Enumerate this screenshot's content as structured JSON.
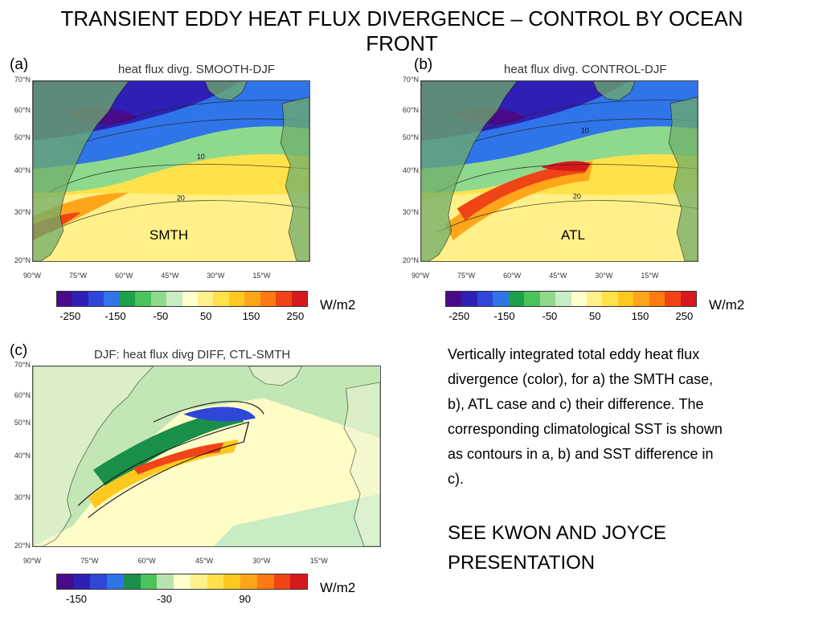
{
  "slide_title": "TRANSIENT EDDY HEAT FLUX DIVERGENCE – CONTROL BY OCEAN FRONT",
  "panels": [
    {
      "letter": "(a)",
      "map_title": "heat flux divg. SMOOTH-DJF",
      "case_label": "SMTH",
      "contour_labels": [
        "10",
        "20"
      ],
      "colorbar_ticks": [
        "-250",
        "-150",
        "-50",
        "50",
        "150",
        "250"
      ],
      "colorbar_unit": "W/m2"
    },
    {
      "letter": "(b)",
      "map_title": "heat flux divg. CONTROL-DJF",
      "case_label": "ATL",
      "contour_labels": [
        "10",
        "20"
      ],
      "colorbar_ticks": [
        "-250",
        "-150",
        "-50",
        "50",
        "150",
        "250"
      ],
      "colorbar_unit": "W/m2"
    },
    {
      "letter": "(c)",
      "map_title": "DJF: heat flux divg DIFF, CTL-SMTH",
      "case_label": "",
      "contour_labels": [],
      "colorbar_ticks": [
        "-150",
        "-30",
        "90"
      ],
      "colorbar_unit": "W/m2"
    }
  ],
  "lat_labels": [
    "70°N",
    "60°N",
    "50°N",
    "40°N",
    "30°N",
    "20°N"
  ],
  "lon_labels": [
    "90°W",
    "75°W",
    "60°W",
    "45°W",
    "30°W",
    "15°W"
  ],
  "colorbar_colors": [
    "#4a0a8c",
    "#2e1fb5",
    "#2f47d9",
    "#2f74e8",
    "#1aa14a",
    "#49c35a",
    "#8fd98d",
    "#c8ecc3",
    "#ffffcc",
    "#fff08a",
    "#ffe24a",
    "#ffc81e",
    "#ffa51a",
    "#ff7a12",
    "#f04416",
    "#d7191c"
  ],
  "diff_colorbar_colors": [
    "#4a0a8c",
    "#2e1fb5",
    "#2f47d9",
    "#2f74e8",
    "#1a8f4a",
    "#49c35a",
    "#b7e3b0",
    "#ffffcc",
    "#fff08a",
    "#ffe24a",
    "#ffc81e",
    "#ffa51a",
    "#ff7a12",
    "#f04416",
    "#d7191c"
  ],
  "caption": "Vertically integrated total eddy heat flux divergence (color), for a) the SMTH case, b), ATL case and c) their difference. The corresponding climatological SST is shown as contours in a, b) and SST difference in c).",
  "caption_note": "SEE KWON AND JOYCE PRESENTATION"
}
